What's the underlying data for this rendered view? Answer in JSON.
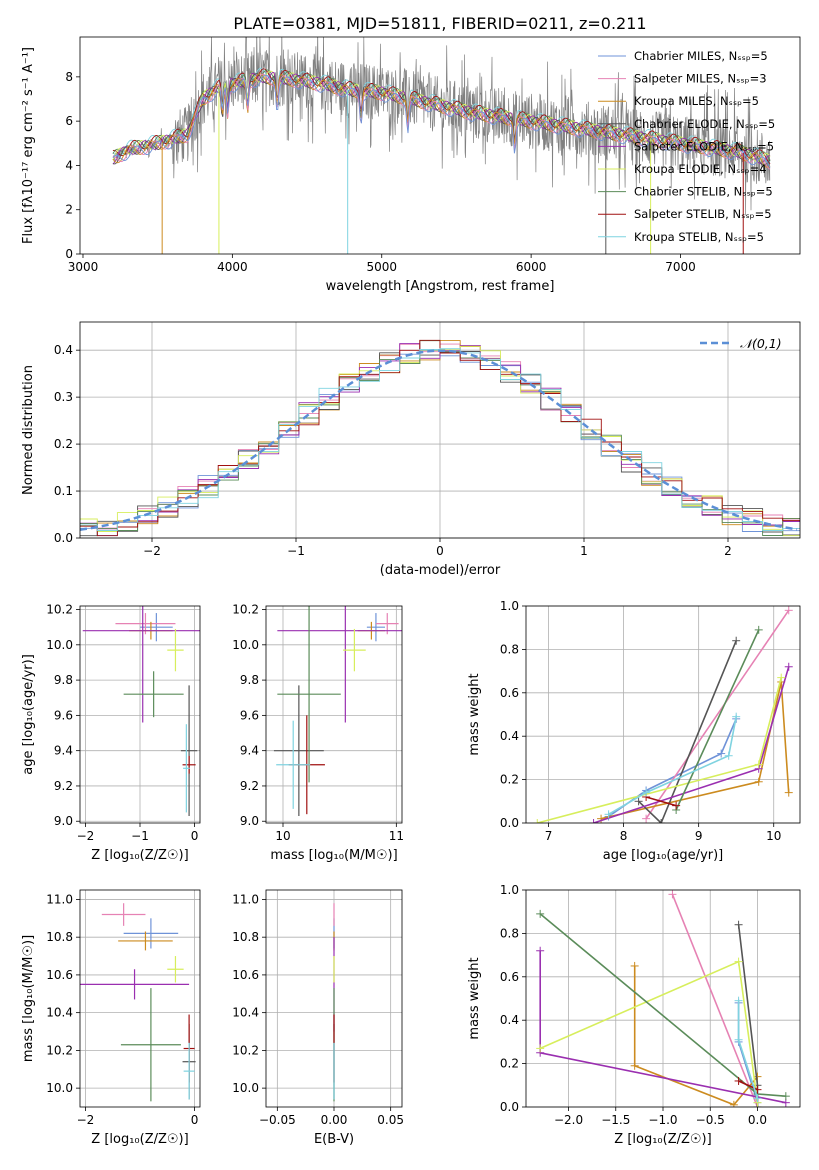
{
  "figure_title": "PLATE=0381, MJD=51811, FIBERID=0211, z=0.211",
  "series_colors": [
    "#6f93d8",
    "#e682b4",
    "#cc8b1f",
    "#555555",
    "#9a2fb0",
    "#d7ee5c",
    "#5b8c5a",
    "#a01010",
    "#7fd3e0"
  ],
  "chart_data": [
    {
      "id": "spectrum",
      "type": "line",
      "xlabel": "wavelength [Angstrom, rest frame]",
      "ylabel": "Flux [fλ10⁻¹⁷ erg cm⁻² s⁻¹ A⁻¹]",
      "xlim": [
        2980,
        7800
      ],
      "ylim": [
        0,
        9.8
      ],
      "xticks": [
        3000,
        4000,
        5000,
        6000,
        7000
      ],
      "yticks": [
        0,
        2,
        4,
        6,
        8
      ],
      "grid": false,
      "legend_position": "top-right",
      "legend": [
        "Chabrier MILES, Nₛₛₚ=5",
        "Salpeter MILES, Nₛₛₚ=3",
        "Kroupa MILES, Nₛₛₚ=5",
        "Chabrier ELODIE, Nₛₛₚ=5",
        "Salpeter ELODIE, Nₛₛₚ=5",
        "Kroupa ELODIE, Nₛₛₚ=4",
        "Chabrier STELIB, Nₛₛₚ=5",
        "Salpeter STELIB, Nₛₛₚ=5",
        "Kroupa STELIB, Nₛₛₚ=5"
      ],
      "continuum": {
        "x": [
          3200,
          3300,
          3500,
          3700,
          3800,
          3900,
          4000,
          4200,
          4400,
          4600,
          4800,
          5000,
          5200,
          5400,
          5600,
          5800,
          6000,
          6200,
          6400,
          6600,
          6800,
          7000,
          7200,
          7400,
          7600
        ],
        "y": [
          4.3,
          4.7,
          5.0,
          5.4,
          7.0,
          7.5,
          7.7,
          8.0,
          7.9,
          7.7,
          7.4,
          7.3,
          7.0,
          6.7,
          6.4,
          6.2,
          6.0,
          5.8,
          5.6,
          5.4,
          5.2,
          5.0,
          4.8,
          4.6,
          4.2
        ]
      },
      "data_color": "#808080"
    },
    {
      "id": "residuals",
      "type": "histogram",
      "xlabel": "(data-model)/error",
      "ylabel": "Normed distribution",
      "xlim": [
        -2.5,
        2.5
      ],
      "ylim": [
        0,
        0.46
      ],
      "xticks": [
        -2,
        -1,
        0,
        1,
        2
      ],
      "yticks": [
        0.0,
        0.1,
        0.2,
        0.3,
        0.4
      ],
      "grid": true,
      "legend_position": "top-right",
      "reference_curve": {
        "label": "𝒩(0,1)",
        "mean": 0,
        "sigma": 1,
        "color": "#5b8fd6"
      }
    },
    {
      "id": "age-vs-Z",
      "type": "errorbar",
      "xlabel": "Z [log₁₀(Z/Z☉)]",
      "ylabel": "age  [log₁₀(age/yr)]",
      "xlim": [
        -2.1,
        0.1
      ],
      "ylim": [
        8.99,
        10.22
      ],
      "xticks": [
        -2,
        -1,
        0
      ],
      "yticks": [
        9.0,
        9.2,
        9.4,
        9.6,
        9.8,
        10.0,
        10.2
      ],
      "grid": true,
      "points": [
        {
          "x": -0.7,
          "xerr": 0.3,
          "y": 10.1,
          "yerr": 0.08,
          "c": 0
        },
        {
          "x": -0.9,
          "xerr": 0.55,
          "y": 10.12,
          "yerr": 0.06,
          "c": 1
        },
        {
          "x": -0.8,
          "xerr": 0.4,
          "y": 10.08,
          "yerr": 0.05,
          "c": 2
        },
        {
          "x": -0.1,
          "xerr": 0.15,
          "y": 9.4,
          "yerr": 0.37,
          "c": 3
        },
        {
          "x": -0.95,
          "xerr": 1.1,
          "y": 10.08,
          "yerr": 0.52,
          "c": 4
        },
        {
          "x": -0.35,
          "xerr": 0.15,
          "y": 9.97,
          "yerr": 0.12,
          "c": 5
        },
        {
          "x": -0.75,
          "xerr": 0.55,
          "y": 9.72,
          "yerr": 0.13,
          "c": 6
        },
        {
          "x": -0.1,
          "xerr": 0.12,
          "y": 9.32,
          "yerr": 0.05,
          "c": 7
        },
        {
          "x": -0.15,
          "xerr": 0.06,
          "y": 9.3,
          "yerr": 0.25,
          "c": 8
        }
      ]
    },
    {
      "id": "age-vs-mass",
      "type": "errorbar",
      "xlabel": "mass [log₁₀(M/M☉)]",
      "ylabel": "",
      "xlim": [
        9.85,
        11.05
      ],
      "ylim": [
        8.99,
        10.22
      ],
      "xticks": [
        10,
        11
      ],
      "yticks": [
        9.0,
        9.2,
        9.4,
        9.6,
        9.8,
        10.0,
        10.2
      ],
      "grid": true,
      "points": [
        {
          "x": 10.82,
          "xerr": 0.08,
          "y": 10.1,
          "yerr": 0.08,
          "c": 0
        },
        {
          "x": 10.92,
          "xerr": 0.1,
          "y": 10.12,
          "yerr": 0.06,
          "c": 1
        },
        {
          "x": 10.78,
          "xerr": 0.12,
          "y": 10.08,
          "yerr": 0.05,
          "c": 2
        },
        {
          "x": 10.14,
          "xerr": 0.22,
          "y": 9.4,
          "yerr": 0.37,
          "c": 3
        },
        {
          "x": 10.55,
          "xerr": 0.6,
          "y": 10.08,
          "yerr": 0.52,
          "c": 4
        },
        {
          "x": 10.63,
          "xerr": 0.1,
          "y": 9.97,
          "yerr": 0.12,
          "c": 5
        },
        {
          "x": 10.23,
          "xerr": 0.28,
          "y": 9.72,
          "yerr": 0.5,
          "c": 6
        },
        {
          "x": 10.21,
          "xerr": 0.16,
          "y": 9.32,
          "yerr": 0.28,
          "c": 7
        },
        {
          "x": 10.09,
          "xerr": 0.15,
          "y": 9.32,
          "yerr": 0.25,
          "c": 8
        }
      ]
    },
    {
      "id": "weight-vs-age",
      "type": "line",
      "xlabel": "age  [log₁₀(age/yr)]",
      "ylabel": "mass weight",
      "xlim": [
        6.7,
        10.35
      ],
      "ylim": [
        0,
        1.0
      ],
      "xticks": [
        7,
        8,
        9,
        10
      ],
      "yticks": [
        0.0,
        0.2,
        0.4,
        0.6,
        0.8,
        1.0
      ],
      "grid": true,
      "series": [
        {
          "c": 0,
          "x": [
            7.8,
            8.3,
            9.3,
            9.5
          ],
          "y": [
            0.03,
            0.15,
            0.32,
            0.48
          ]
        },
        {
          "c": 1,
          "x": [
            8.3,
            10.2
          ],
          "y": [
            0.02,
            0.98
          ]
        },
        {
          "c": 2,
          "x": [
            7.7,
            9.8,
            10.1,
            10.2
          ],
          "y": [
            0.02,
            0.19,
            0.65,
            0.14
          ]
        },
        {
          "c": 3,
          "x": [
            8.2,
            8.5,
            9.5
          ],
          "y": [
            0.1,
            0.0,
            0.84
          ]
        },
        {
          "c": 4,
          "x": [
            7.6,
            9.8,
            10.2
          ],
          "y": [
            0.0,
            0.25,
            0.72
          ]
        },
        {
          "c": 5,
          "x": [
            6.85,
            9.8,
            10.1
          ],
          "y": [
            0.0,
            0.27,
            0.67
          ]
        },
        {
          "c": 6,
          "x": [
            8.7,
            9.8
          ],
          "y": [
            0.06,
            0.89
          ]
        },
        {
          "c": 7,
          "x": [
            8.3,
            8.7
          ],
          "y": [
            0.12,
            0.08
          ]
        },
        {
          "c": 8,
          "x": [
            7.8,
            8.3,
            9.4,
            9.5
          ],
          "y": [
            0.04,
            0.14,
            0.31,
            0.49
          ]
        }
      ]
    },
    {
      "id": "mass-vs-Z",
      "type": "errorbar",
      "xlabel": "Z [log₁₀(Z/Z☉)]",
      "ylabel": "mass [log₁₀(M/M☉)]",
      "xlim": [
        -2.1,
        0.1
      ],
      "ylim": [
        9.9,
        11.05
      ],
      "xticks": [
        -2,
        0
      ],
      "yticks": [
        10.0,
        10.2,
        10.4,
        10.6,
        10.8,
        11.0
      ],
      "grid": true,
      "points": [
        {
          "x": -0.8,
          "xerr": 0.5,
          "y": 10.82,
          "yerr": 0.08,
          "c": 0
        },
        {
          "x": -1.3,
          "xerr": 0.4,
          "y": 10.92,
          "yerr": 0.06,
          "c": 1
        },
        {
          "x": -0.9,
          "xerr": 0.5,
          "y": 10.78,
          "yerr": 0.05,
          "c": 2
        },
        {
          "x": -0.1,
          "xerr": 0.12,
          "y": 10.14,
          "yerr": 0.2,
          "c": 3
        },
        {
          "x": -1.1,
          "xerr": 1.0,
          "y": 10.55,
          "yerr": 0.08,
          "c": 4
        },
        {
          "x": -0.35,
          "xerr": 0.15,
          "y": 10.63,
          "yerr": 0.07,
          "c": 5
        },
        {
          "x": -0.8,
          "xerr": 0.55,
          "y": 10.23,
          "yerr": 0.3,
          "c": 6
        },
        {
          "x": -0.1,
          "xerr": 0.1,
          "y": 10.21,
          "yerr": 0.18,
          "c": 7
        },
        {
          "x": -0.1,
          "xerr": 0.1,
          "y": 10.09,
          "yerr": 0.15,
          "c": 8
        }
      ]
    },
    {
      "id": "mass-vs-ebv",
      "type": "errorbar",
      "xlabel": "E(B-V)",
      "ylabel": "",
      "xlim": [
        -0.06,
        0.06
      ],
      "ylim": [
        9.9,
        11.05
      ],
      "xticks": [
        -0.05,
        0.0,
        0.05
      ],
      "yticks": [
        10.0,
        10.2,
        10.4,
        10.6,
        10.8,
        11.0
      ],
      "grid": true,
      "points": [
        {
          "x": 0,
          "xerr": 0,
          "y": 10.82,
          "yerr": 0.08,
          "c": 0
        },
        {
          "x": 0,
          "xerr": 0,
          "y": 10.92,
          "yerr": 0.06,
          "c": 1
        },
        {
          "x": 0,
          "xerr": 0,
          "y": 10.78,
          "yerr": 0.05,
          "c": 2
        },
        {
          "x": 0,
          "xerr": 0,
          "y": 10.14,
          "yerr": 0.2,
          "c": 3
        },
        {
          "x": 0,
          "xerr": 0,
          "y": 10.55,
          "yerr": 0.25,
          "c": 4
        },
        {
          "x": 0,
          "xerr": 0,
          "y": 10.63,
          "yerr": 0.07,
          "c": 5
        },
        {
          "x": 0,
          "xerr": 0,
          "y": 10.23,
          "yerr": 0.3,
          "c": 6
        },
        {
          "x": 0,
          "xerr": 0,
          "y": 10.21,
          "yerr": 0.18,
          "c": 7
        },
        {
          "x": 0,
          "xerr": 0,
          "y": 10.09,
          "yerr": 0.15,
          "c": 8
        }
      ]
    },
    {
      "id": "weight-vs-Z",
      "type": "line",
      "xlabel": "Z [log₁₀(Z/Z☉)]",
      "ylabel": "mass weight",
      "xlim": [
        -2.45,
        0.45
      ],
      "ylim": [
        0,
        1.0
      ],
      "xticks": [
        -2.0,
        -1.5,
        -1.0,
        -0.5,
        0.0
      ],
      "yticks": [
        0.0,
        0.2,
        0.4,
        0.6,
        0.8,
        1.0
      ],
      "grid": true,
      "series": [
        {
          "c": 0,
          "x": [
            -0.2,
            -0.2,
            0.0
          ],
          "y": [
            0.48,
            0.3,
            0.02
          ]
        },
        {
          "c": 1,
          "x": [
            -0.9,
            0.0
          ],
          "y": [
            0.98,
            0.0
          ]
        },
        {
          "c": 2,
          "x": [
            -1.3,
            -1.3,
            -0.25,
            0.0
          ],
          "y": [
            0.65,
            0.19,
            0.01,
            0.14
          ]
        },
        {
          "c": 3,
          "x": [
            -0.2,
            0.0,
            0.0
          ],
          "y": [
            0.84,
            0.1,
            0.0
          ]
        },
        {
          "c": 4,
          "x": [
            -2.3,
            -2.3,
            0.3
          ],
          "y": [
            0.72,
            0.25,
            0.02
          ]
        },
        {
          "c": 5,
          "x": [
            -2.3,
            -0.2,
            0.0
          ],
          "y": [
            0.27,
            0.67,
            0.02
          ]
        },
        {
          "c": 6,
          "x": [
            -2.3,
            0.0,
            0.3
          ],
          "y": [
            0.89,
            0.06,
            0.05
          ]
        },
        {
          "c": 7,
          "x": [
            -0.2,
            0.0
          ],
          "y": [
            0.12,
            0.08
          ]
        },
        {
          "c": 8,
          "x": [
            -0.2,
            -0.2,
            0.0
          ],
          "y": [
            0.49,
            0.31,
            0.04
          ]
        }
      ]
    }
  ]
}
